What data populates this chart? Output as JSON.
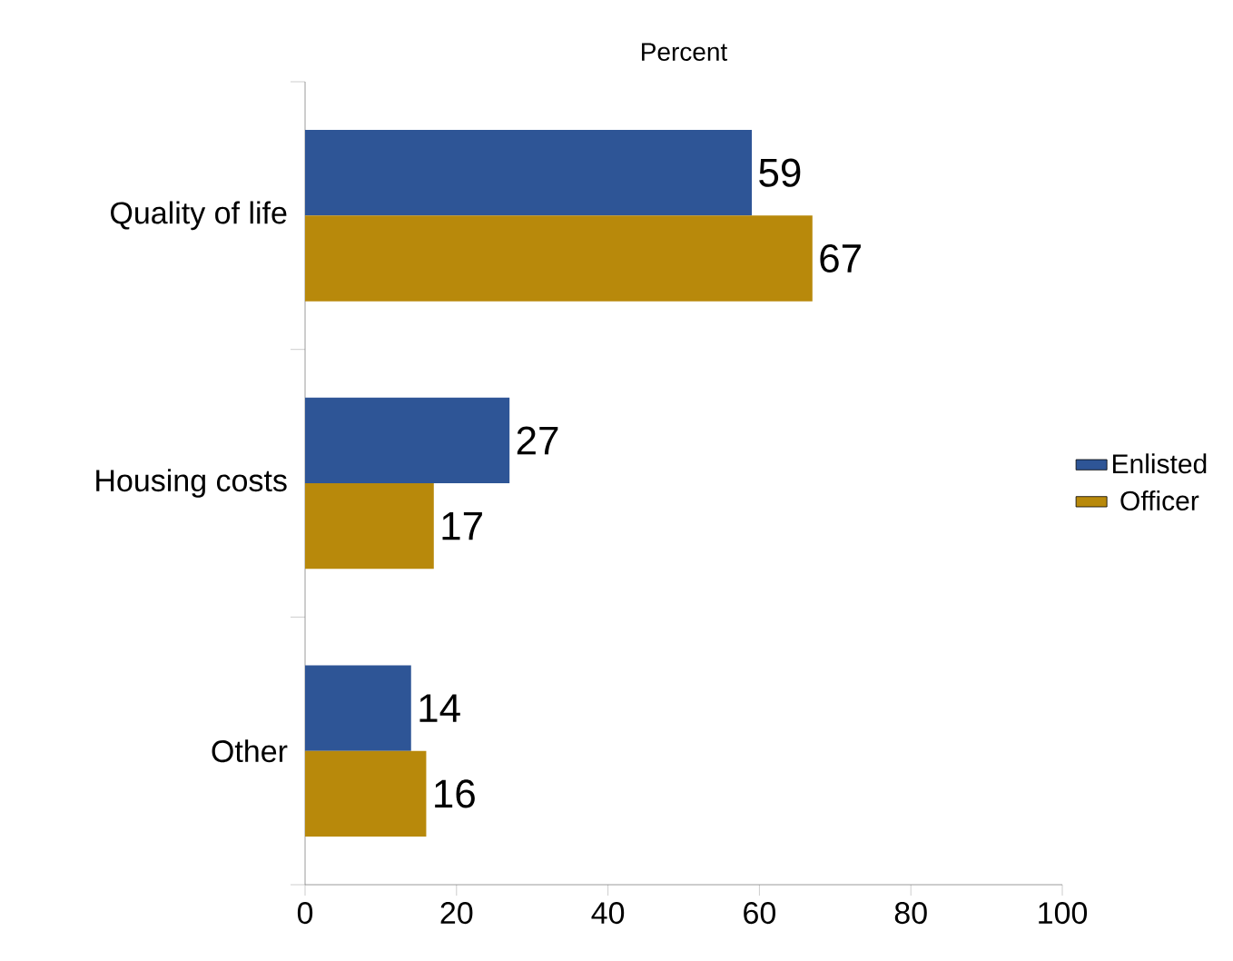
{
  "chart_data": {
    "type": "bar",
    "orientation": "horizontal",
    "xlabel": "Percent",
    "categories": [
      "Quality of life",
      "Housing costs",
      "Other"
    ],
    "series": [
      {
        "name": "Enlisted",
        "color": "#2e5596",
        "values": [
          59,
          27,
          14
        ]
      },
      {
        "name": "Officer",
        "color": "#b8890b",
        "values": [
          67,
          17,
          16
        ]
      }
    ],
    "xlim": [
      0,
      100
    ],
    "xticks": [
      0,
      20,
      40,
      60,
      80,
      100
    ],
    "data_labels": true,
    "legend": "right",
    "grid": false
  }
}
